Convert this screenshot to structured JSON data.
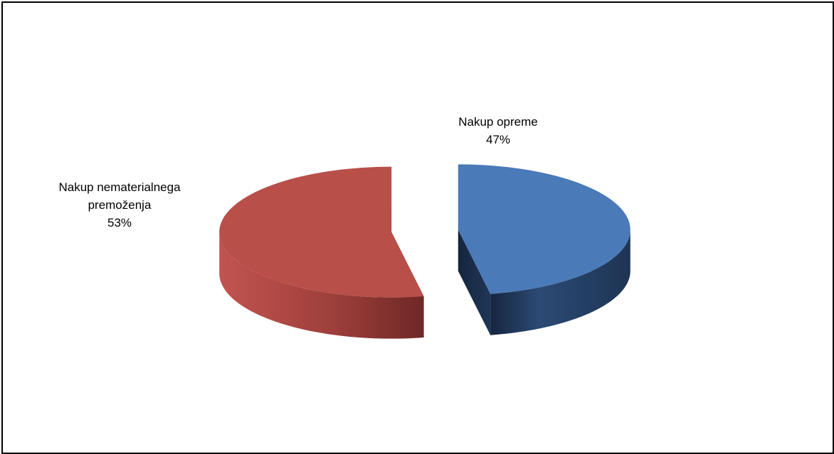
{
  "chart_data": {
    "type": "pie",
    "title": "",
    "style": "3d-exploded",
    "legend": "none",
    "slices": [
      {
        "label": "Nakup opreme",
        "value": 47,
        "display": "47%",
        "color": "#4A7AB7",
        "side_color": "#1F3656"
      },
      {
        "label": "Nakup nematerialnega premoženja",
        "label_lines": [
          "Nakup nematerialnega",
          "premoženja"
        ],
        "value": 53,
        "display": "53%",
        "color": "#B84F49",
        "side_color": "#7E302D"
      }
    ]
  }
}
